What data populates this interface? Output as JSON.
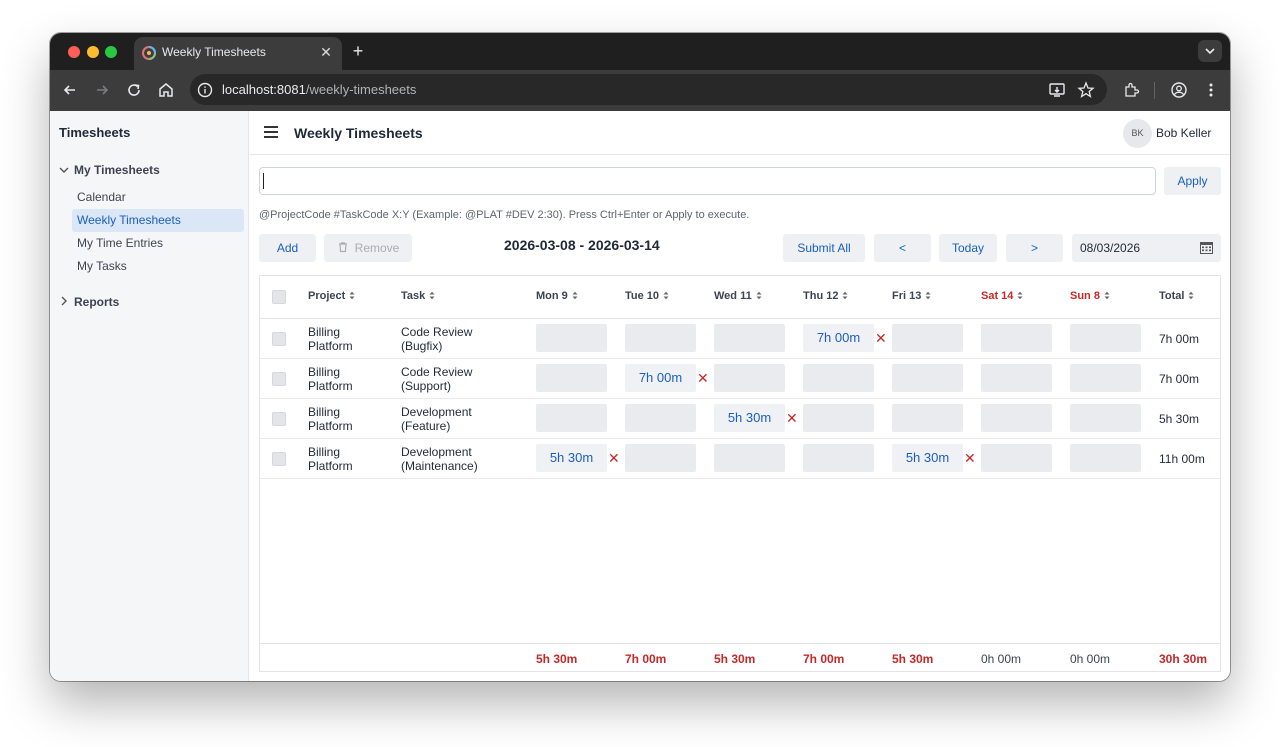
{
  "browser": {
    "tab_title": "Weekly Timesheets",
    "tab_close": "✕",
    "new_tab": "+",
    "url_host": "localhost:8081",
    "url_path": "/weekly-timesheets"
  },
  "sidebar": {
    "title": "Timesheets",
    "groups": [
      {
        "label": "My Timesheets",
        "expanded": true,
        "items": [
          {
            "label": "Calendar",
            "active": false
          },
          {
            "label": "Weekly Timesheets",
            "active": true
          },
          {
            "label": "My Time Entries",
            "active": false
          },
          {
            "label": "My Tasks",
            "active": false
          }
        ]
      },
      {
        "label": "Reports",
        "expanded": false,
        "items": []
      }
    ]
  },
  "header": {
    "title": "Weekly Timesheets",
    "user_initials": "BK",
    "user_name": "Bob Keller"
  },
  "command": {
    "value": "",
    "apply_label": "Apply",
    "hint": "@ProjectCode #TaskCode X:Y (Example: @PLAT #DEV 2:30). Press Ctrl+Enter or Apply to execute."
  },
  "toolbar": {
    "add_label": "Add",
    "remove_label": "Remove",
    "week_range": "2026-03-08 - 2026-03-14",
    "submit_all_label": "Submit All",
    "prev_label": "<",
    "today_label": "Today",
    "next_label": ">",
    "date_value": "08/03/2026"
  },
  "grid": {
    "columns": {
      "project": "Project",
      "task": "Task",
      "days": [
        {
          "label": "Mon 9",
          "weekend": false
        },
        {
          "label": "Tue 10",
          "weekend": false
        },
        {
          "label": "Wed 11",
          "weekend": false
        },
        {
          "label": "Thu 12",
          "weekend": false
        },
        {
          "label": "Fri 13",
          "weekend": false
        },
        {
          "label": "Sat 14",
          "weekend": true
        },
        {
          "label": "Sun 8",
          "weekend": true
        }
      ],
      "total": "Total"
    },
    "rows": [
      {
        "project": [
          "Billing",
          "Platform"
        ],
        "task": [
          "Code Review",
          "(Bugfix)"
        ],
        "hours": [
          "",
          "",
          "",
          "7h 00m",
          "",
          "",
          ""
        ],
        "total": "7h 00m"
      },
      {
        "project": [
          "Billing",
          "Platform"
        ],
        "task": [
          "Code Review",
          "(Support)"
        ],
        "hours": [
          "",
          "7h 00m",
          "",
          "",
          "",
          "",
          ""
        ],
        "total": "7h 00m"
      },
      {
        "project": [
          "Billing",
          "Platform"
        ],
        "task": [
          "Development",
          "(Feature)"
        ],
        "hours": [
          "",
          "",
          "5h 30m",
          "",
          "",
          "",
          ""
        ],
        "total": "5h 30m"
      },
      {
        "project": [
          "Billing",
          "Platform"
        ],
        "task": [
          "Development",
          "(Maintenance)"
        ],
        "hours": [
          "5h 30m",
          "",
          "",
          "",
          "5h 30m",
          "",
          ""
        ],
        "total": "11h 00m"
      }
    ],
    "delete_glyph": "✕",
    "footer": {
      "days": [
        "5h 30m",
        "7h 00m",
        "5h 30m",
        "7h 00m",
        "5h 30m",
        "0h 00m",
        "0h 00m"
      ],
      "total": "30h 30m"
    }
  },
  "colors": {
    "accent": "#1a5fbf",
    "weekend": "#c62828",
    "delete": "#c62828"
  }
}
